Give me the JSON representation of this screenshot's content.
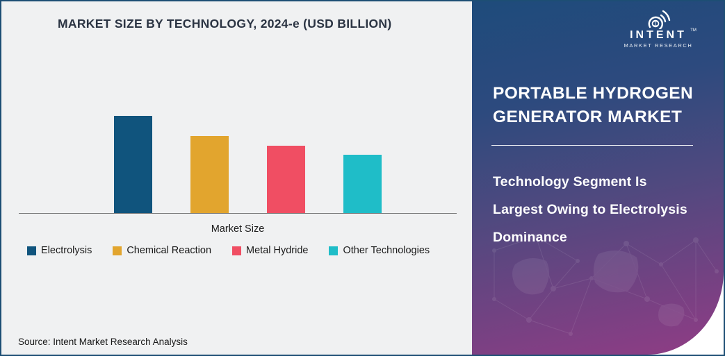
{
  "page": {
    "border_color": "#1d4e74",
    "background": "#ffffff"
  },
  "chart_section": {
    "title": "MARKET SIZE BY TECHNOLOGY, 2024-e (USD BILLION)",
    "background": "#f0f1f2",
    "x_axis_label": "Market Size",
    "source": "Source: Intent Market Research Analysis",
    "legend": [
      {
        "label": "Electrolysis",
        "color": "#10547d"
      },
      {
        "label": "Chemical Reaction",
        "color": "#e2a52e"
      },
      {
        "label": "Metal Hydride",
        "color": "#f04e63"
      },
      {
        "label": "Other Technologies",
        "color": "#1fbdc8"
      }
    ]
  },
  "chart_data": {
    "type": "bar",
    "title": "MARKET SIZE BY TECHNOLOGY, 2024-e (USD BILLION)",
    "categories": [
      "Electrolysis",
      "Chemical Reaction",
      "Metal Hydride",
      "Other Technologies"
    ],
    "values": [
      1.0,
      0.79,
      0.69,
      0.6
    ],
    "values_estimated": true,
    "value_scale": "relative to tallest bar; no numeric axis ticks shown",
    "colors": [
      "#10547d",
      "#e2a52e",
      "#f04e63",
      "#1fbdc8"
    ],
    "xlabel": "Market Size",
    "ylabel": "USD Billion",
    "ylim": [
      0,
      1.05
    ],
    "grid": false,
    "legend_position": "bottom"
  },
  "panel": {
    "gradient_top": "#1e4b7b",
    "gradient_bottom": "#903c85",
    "logo": {
      "name": "INTENT",
      "sub": "MARKET RESEARCH",
      "tm": "TM"
    },
    "title_lines": [
      "PORTABLE HYDROGEN",
      "GENERATOR MARKET"
    ],
    "subtitle_lines": [
      "Technology Segment Is",
      "Largest Owing to Electrolysis",
      "Dominance"
    ]
  }
}
